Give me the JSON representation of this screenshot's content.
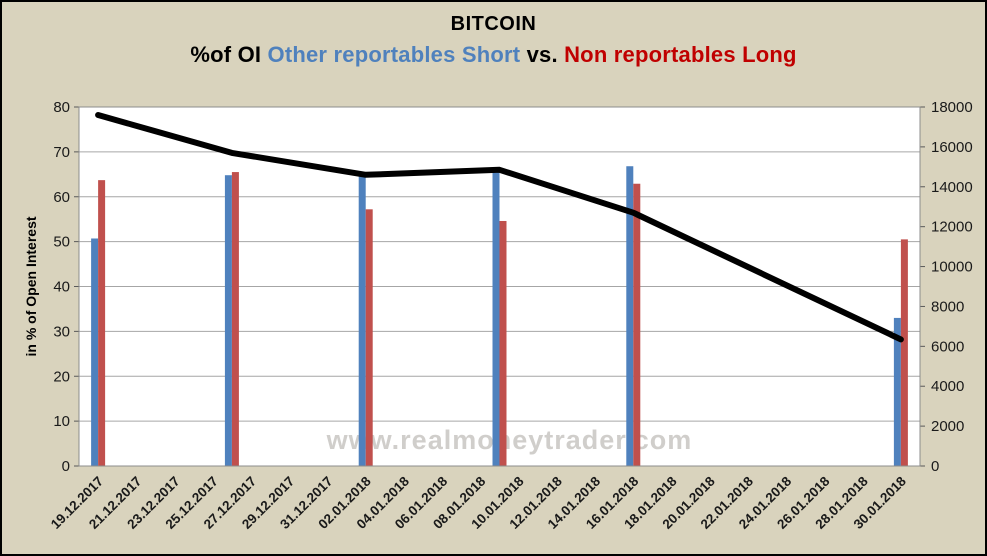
{
  "header": {
    "title": "BITCOIN",
    "subtitle_segments": [
      {
        "text": "%of OI ",
        "color": "#000000"
      },
      {
        "text": "Other reportables Short",
        "color": "#4f81bd"
      },
      {
        "text": " vs. ",
        "color": "#000000"
      },
      {
        "text": "Non reportables Long",
        "color": "#c00000"
      }
    ]
  },
  "watermark": "www.realmoneytrader.com",
  "colors": {
    "background": "#d9d3bd",
    "plot_background": "#ffffff",
    "gridline": "#a6a6a6",
    "plot_border": "#8c8c8c",
    "tick": "#595959",
    "axis_text": "#1a1a1a",
    "bar_blue": "#4f81bd",
    "bar_red": "#c0504d",
    "line_black": "#000000",
    "watermark_gray": "#d0cecb"
  },
  "chart_data": {
    "type": "bar",
    "title": "BITCOIN",
    "subtitle": "%of OI Other reportables Short vs. Non reportables Long",
    "categories": [
      "19.12.2017",
      "21.12.2017",
      "23.12.2017",
      "25.12.2017",
      "27.12.2017",
      "29.12.2017",
      "31.12.2017",
      "02.01.2018",
      "04.01.2018",
      "06.01.2018",
      "08.01.2018",
      "10.01.2018",
      "12.01.2018",
      "14.01.2018",
      "16.01.2018",
      "18.01.2018",
      "20.01.2018",
      "22.01.2018",
      "24.01.2018",
      "26.01.2018",
      "28.01.2018",
      "30.01.2018"
    ],
    "left_axis": {
      "title": "in % of Open Interest",
      "min": 0,
      "max": 80,
      "step": 10,
      "ticks": [
        0,
        10,
        20,
        30,
        40,
        50,
        60,
        70,
        80
      ]
    },
    "right_axis": {
      "min": 0,
      "max": 18000,
      "step": 2000,
      "ticks": [
        0,
        2000,
        4000,
        6000,
        8000,
        10000,
        12000,
        14000,
        16000,
        18000
      ]
    },
    "grid": true,
    "legend_position": "none (series identified by colored subtitle text)",
    "bar_series": [
      {
        "name": "Other reportables Short",
        "color": "#4f81bd",
        "axis": "left",
        "points": [
          [
            "19.12.2017",
            50.7
          ],
          [
            "26.12.2017",
            64.8
          ],
          [
            "02.01.2018",
            64.5
          ],
          [
            "09.01.2018",
            66.5
          ],
          [
            "16.01.2018",
            66.8
          ],
          [
            "30.01.2018",
            33.0
          ]
        ]
      },
      {
        "name": "Non reportables Long",
        "color": "#c0504d",
        "axis": "left",
        "points": [
          [
            "19.12.2017",
            63.7
          ],
          [
            "26.12.2017",
            65.5
          ],
          [
            "02.01.2018",
            57.2
          ],
          [
            "09.01.2018",
            54.6
          ],
          [
            "16.01.2018",
            62.9
          ],
          [
            "30.01.2018",
            50.5
          ]
        ]
      }
    ],
    "line_series": [
      {
        "color": "#000000",
        "axis": "right",
        "points": [
          [
            "19.12.2017",
            17600
          ],
          [
            "26.12.2017",
            15700
          ],
          [
            "02.01.2018",
            14600
          ],
          [
            "09.01.2018",
            14850
          ],
          [
            "16.01.2018",
            12700
          ],
          [
            "30.01.2018",
            6350
          ]
        ]
      }
    ]
  }
}
